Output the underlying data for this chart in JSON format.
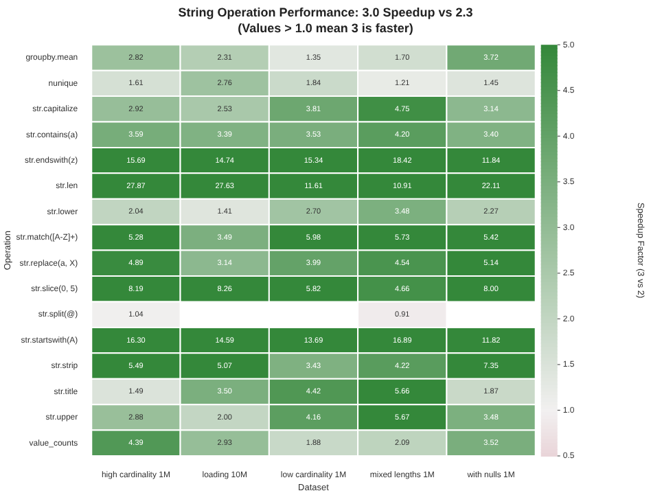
{
  "chart_data": {
    "type": "heatmap",
    "title": "String Operation Performance: 3.0 Speedup vs 2.3",
    "subtitle": "(Values > 1.0 mean 3 is faster)",
    "xlabel": "Dataset",
    "ylabel": "Operation",
    "clabel": "Speedup Factor (3 vs 2)",
    "categories": [
      "high cardinality 1M",
      "loading 10M",
      "low cardinality 1M",
      "mixed lengths 1M",
      "with nulls 1M"
    ],
    "y_categories": [
      "groupby.mean",
      "nunique",
      "str.capitalize",
      "str.contains(a)",
      "str.endswith(z)",
      "str.len",
      "str.lower",
      "str.match([A-Z]+)",
      "str.replace(a, X)",
      "str.slice(0, 5)",
      "str.split(@)",
      "str.startswith(A)",
      "str.strip",
      "str.title",
      "str.upper",
      "value_counts"
    ],
    "cells": [
      [
        2.82,
        2.31,
        1.35,
        1.7,
        3.72
      ],
      [
        1.61,
        2.76,
        1.84,
        1.21,
        1.45
      ],
      [
        2.92,
        2.53,
        3.81,
        4.75,
        3.14
      ],
      [
        3.59,
        3.39,
        3.53,
        4.2,
        3.4
      ],
      [
        15.69,
        14.74,
        15.34,
        18.42,
        11.84
      ],
      [
        27.87,
        27.63,
        11.61,
        10.91,
        22.11
      ],
      [
        2.04,
        1.41,
        2.7,
        3.48,
        2.27
      ],
      [
        5.28,
        3.49,
        5.98,
        5.73,
        5.42
      ],
      [
        4.89,
        3.14,
        3.99,
        4.54,
        5.14
      ],
      [
        8.19,
        8.26,
        5.82,
        4.66,
        8.0
      ],
      [
        1.04,
        null,
        null,
        0.91,
        null
      ],
      [
        16.3,
        14.59,
        13.69,
        16.89,
        11.82
      ],
      [
        5.49,
        5.07,
        3.43,
        4.22,
        7.35
      ],
      [
        1.49,
        3.5,
        4.42,
        5.66,
        1.87
      ],
      [
        2.88,
        2.0,
        4.16,
        5.67,
        3.48
      ],
      [
        4.39,
        2.93,
        1.88,
        2.09,
        3.52
      ]
    ],
    "cell_labels": [
      [
        "2.82",
        "2.31",
        "1.35",
        "1.70",
        "3.72"
      ],
      [
        "1.61",
        "2.76",
        "1.84",
        "1.21",
        "1.45"
      ],
      [
        "2.92",
        "2.53",
        "3.81",
        "4.75",
        "3.14"
      ],
      [
        "3.59",
        "3.39",
        "3.53",
        "4.20",
        "3.40"
      ],
      [
        "15.69",
        "14.74",
        "15.34",
        "18.42",
        "11.84"
      ],
      [
        "27.87",
        "27.63",
        "11.61",
        "10.91",
        "22.11"
      ],
      [
        "2.04",
        "1.41",
        "2.70",
        "3.48",
        "2.27"
      ],
      [
        "5.28",
        "3.49",
        "5.98",
        "5.73",
        "5.42"
      ],
      [
        "4.89",
        "3.14",
        "3.99",
        "4.54",
        "5.14"
      ],
      [
        "8.19",
        "8.26",
        "5.82",
        "4.66",
        "8.00"
      ],
      [
        "1.04",
        null,
        null,
        "0.91",
        null
      ],
      [
        "16.30",
        "14.59",
        "13.69",
        "16.89",
        "11.82"
      ],
      [
        "5.49",
        "5.07",
        "3.43",
        "4.22",
        "7.35"
      ],
      [
        "1.49",
        "3.50",
        "4.42",
        "5.66",
        "1.87"
      ],
      [
        "2.88",
        "2.00",
        "4.16",
        "5.67",
        "3.48"
      ],
      [
        "4.39",
        "2.93",
        "1.88",
        "2.09",
        "3.52"
      ]
    ],
    "clim": [
      0.5,
      5.0
    ],
    "cticks": [
      0.5,
      {
        "value": 1,
        "label": "1.0"
      },
      1.5,
      {
        "value": 2,
        "label": "2.0"
      },
      2.5,
      {
        "value": 3,
        "label": "3.0"
      },
      3.5,
      {
        "value": 4,
        "label": "4.0"
      },
      4.5,
      {
        "value": 5,
        "label": "5.0"
      }
    ]
  }
}
